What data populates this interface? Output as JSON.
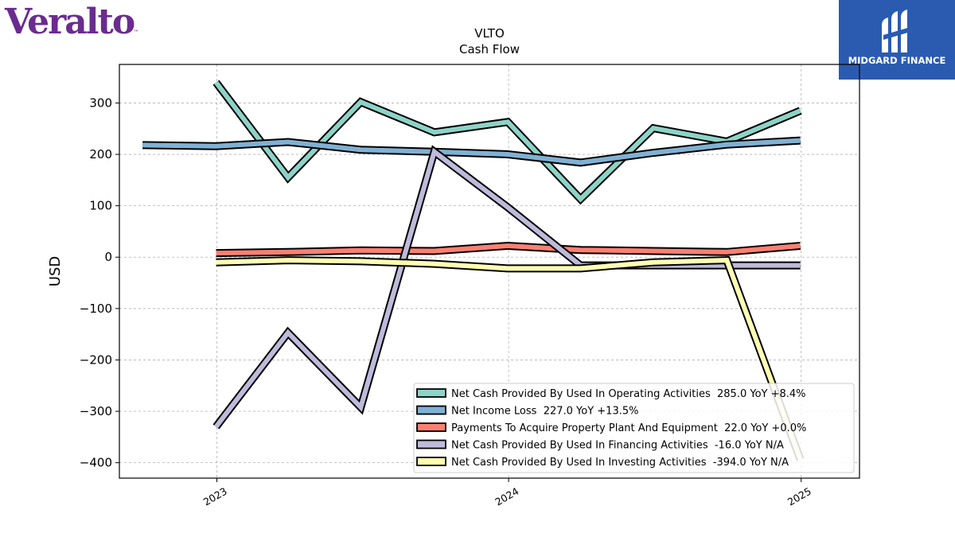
{
  "logos": {
    "left_text": "Veralto",
    "left_tm": "™",
    "left_color": "#6a2c8e",
    "right_text": "MIDGARD FINANCE",
    "right_bg": "#2b5bb0"
  },
  "chart_data": {
    "type": "line",
    "title": "VLTO",
    "subtitle": "Cash Flow",
    "xlabel": "",
    "ylabel": "USD",
    "ylim": [
      -430,
      375
    ],
    "xlim": [
      "2022-09-01",
      "2025-03-15"
    ],
    "yticks": [
      -400,
      -300,
      -200,
      -100,
      0,
      100,
      200,
      300
    ],
    "ytick_labels": [
      "−400",
      "−300",
      "−200",
      "−100",
      "0",
      "100",
      "200",
      "300"
    ],
    "xticks": [
      "2023-01-01",
      "2024-01-01",
      "2025-01-01"
    ],
    "xtick_labels": [
      "2023",
      "2024",
      "2025"
    ],
    "grid": true,
    "legend_position": "lower-right",
    "series": [
      {
        "name": "Net Cash Provided By Used In Operating Activities  285.0 YoY +8.4%",
        "color": "#8dd3c7",
        "x": [
          "2022-12-31",
          "2023-03-31",
          "2023-06-30",
          "2023-09-30",
          "2023-12-31",
          "2024-03-31",
          "2024-06-30",
          "2024-09-30",
          "2024-12-31"
        ],
        "values": [
          340,
          155,
          302,
          243,
          263,
          113,
          251,
          225,
          285
        ]
      },
      {
        "name": "Net Income Loss  227.0 YoY +13.5%",
        "color": "#80b1d3",
        "x": [
          "2022-09-30",
          "2022-12-31",
          "2023-03-31",
          "2023-06-30",
          "2023-09-30",
          "2023-12-31",
          "2024-03-31",
          "2024-06-30",
          "2024-09-30",
          "2024-12-31"
        ],
        "values": [
          218,
          216,
          224,
          209,
          205,
          200,
          184,
          203,
          219,
          227
        ]
      },
      {
        "name": "Payments To Acquire Property Plant And Equipment  22.0 YoY +0.0%",
        "color": "#fb8072",
        "x": [
          "2022-12-31",
          "2023-03-31",
          "2023-06-30",
          "2023-09-30",
          "2023-12-31",
          "2024-03-31",
          "2024-06-30",
          "2024-09-30",
          "2024-12-31"
        ],
        "values": [
          8,
          10,
          13,
          12,
          22,
          14,
          12,
          10,
          22
        ]
      },
      {
        "name": "Net Cash Provided By Used In Financing Activities  -16.0 YoY N/A",
        "color": "#bebada",
        "x": [
          "2022-12-31",
          "2023-03-31",
          "2023-06-30",
          "2023-09-30",
          "2023-12-31",
          "2024-03-31",
          "2024-06-30",
          "2024-09-30",
          "2024-12-31"
        ],
        "values": [
          -330,
          -147,
          -292,
          205,
          97,
          -16,
          -16,
          -16,
          -16
        ]
      },
      {
        "name": "Net Cash Provided By Used In Investing Activities  -394.0 YoY N/A",
        "color": "#ffffb3",
        "x": [
          "2022-12-31",
          "2023-03-31",
          "2023-06-30",
          "2023-09-30",
          "2023-12-31",
          "2024-03-31",
          "2024-06-30",
          "2024-09-30",
          "2024-12-31"
        ],
        "values": [
          -10,
          -6,
          -8,
          -13,
          -22,
          -22,
          -10,
          -6,
          -394
        ]
      }
    ]
  }
}
